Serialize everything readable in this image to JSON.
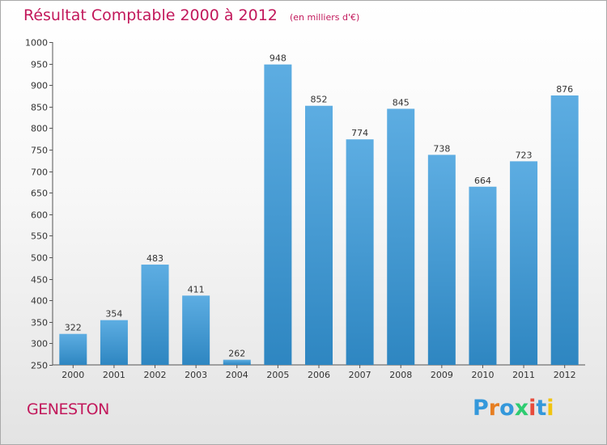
{
  "chart_data": {
    "type": "bar",
    "title": "Résultat Comptable 2000 à 2012",
    "unit_note": "(en milliers d'€)",
    "categories": [
      "2000",
      "2001",
      "2002",
      "2003",
      "2004",
      "2005",
      "2006",
      "2007",
      "2008",
      "2009",
      "2010",
      "2011",
      "2012"
    ],
    "values": [
      322,
      354,
      483,
      411,
      262,
      948,
      852,
      774,
      845,
      738,
      664,
      723,
      876
    ],
    "ylim": [
      250,
      1000
    ],
    "yticks": [
      250,
      300,
      350,
      400,
      450,
      500,
      550,
      600,
      650,
      700,
      750,
      800,
      850,
      900,
      950,
      1000
    ],
    "grid": false,
    "legend": "none",
    "bar_color_light": "#5dade2",
    "bar_color_dark": "#2e86c1"
  },
  "footer": {
    "commune": "GENESTON",
    "logo_text": "Proxiti",
    "logo_colors": [
      "#3498db",
      "#e67e22",
      "#3498db",
      "#2ecc71",
      "#e74c3c",
      "#3498db",
      "#f1c40f"
    ]
  },
  "colors": {
    "title": "#c2185b",
    "axis": "#555555"
  }
}
